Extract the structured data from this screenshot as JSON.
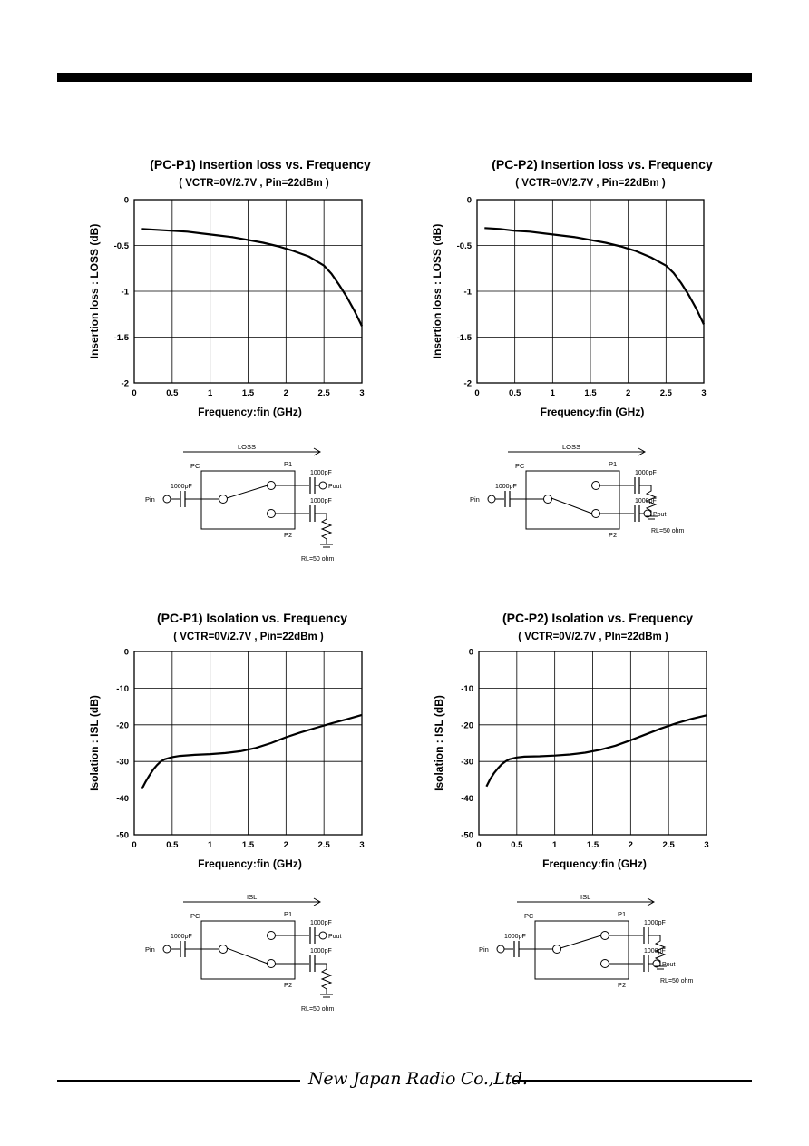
{
  "chart_data": [
    {
      "type": "line",
      "title": "(PC-P1)  Insertion loss vs. Frequency",
      "condition": "( VCTR=0V/2.7V , Pin=22dBm )",
      "xlabel": "Frequency:fin (GHz)",
      "ylabel": "Insertion loss : LOSS (dB)",
      "xlim": [
        0,
        3
      ],
      "ylim": [
        -2,
        0
      ],
      "xticks": [
        "0",
        "0.5",
        "1",
        "1.5",
        "2",
        "2.5",
        "3"
      ],
      "yticks": [
        "0",
        "-0.5",
        "-1",
        "-1.5",
        "-2"
      ],
      "grid": true,
      "series": [
        {
          "x": [
            0.1,
            0.3,
            0.5,
            0.7,
            0.9,
            1.1,
            1.3,
            1.5,
            1.7,
            1.9,
            2.1,
            2.3,
            2.5,
            2.6,
            2.7,
            2.8,
            2.9,
            3.0
          ],
          "y": [
            -0.32,
            -0.33,
            -0.34,
            -0.35,
            -0.37,
            -0.39,
            -0.41,
            -0.44,
            -0.47,
            -0.51,
            -0.56,
            -0.62,
            -0.72,
            -0.81,
            -0.93,
            -1.06,
            -1.21,
            -1.38
          ]
        }
      ]
    },
    {
      "type": "line",
      "title": "(PC-P2)  Insertion loss vs. Frequency",
      "condition": "( VCTR=0V/2.7V , Pin=22dBm )",
      "xlabel": "Frequency:fin (GHz)",
      "ylabel": "Insertion loss : LOSS (dB)",
      "xlim": [
        0,
        3
      ],
      "ylim": [
        -2,
        0
      ],
      "xticks": [
        "0",
        "0.5",
        "1",
        "1.5",
        "2",
        "2.5",
        "3"
      ],
      "yticks": [
        "0",
        "-0.5",
        "-1",
        "-1.5",
        "-2"
      ],
      "grid": true,
      "series": [
        {
          "x": [
            0.1,
            0.3,
            0.5,
            0.7,
            0.9,
            1.1,
            1.3,
            1.5,
            1.7,
            1.9,
            2.1,
            2.3,
            2.5,
            2.6,
            2.7,
            2.8,
            2.9,
            3.0
          ],
          "y": [
            -0.31,
            -0.32,
            -0.34,
            -0.35,
            -0.37,
            -0.39,
            -0.41,
            -0.44,
            -0.47,
            -0.51,
            -0.56,
            -0.63,
            -0.72,
            -0.8,
            -0.91,
            -1.04,
            -1.19,
            -1.36
          ]
        }
      ]
    },
    {
      "type": "line",
      "title": "(PC-P1)  Isolation vs. Frequency",
      "condition": "( VCTR=0V/2.7V , Pin=22dBm )",
      "xlabel": "Frequency:fin (GHz)",
      "ylabel": "Isolation : ISL (dB)",
      "xlim": [
        0,
        3
      ],
      "ylim": [
        -50,
        0
      ],
      "xticks": [
        "0",
        "0.5",
        "1",
        "1.5",
        "2",
        "2.5",
        "3"
      ],
      "yticks": [
        "0",
        "-10",
        "-20",
        "-30",
        "-40",
        "-50"
      ],
      "grid": true,
      "series": [
        {
          "x": [
            0.1,
            0.15,
            0.2,
            0.25,
            0.3,
            0.35,
            0.4,
            0.5,
            0.6,
            0.8,
            1.0,
            1.2,
            1.4,
            1.6,
            1.8,
            2.0,
            2.2,
            2.4,
            2.6,
            2.8,
            3.0
          ],
          "y": [
            -37.5,
            -35.5,
            -33.8,
            -32.2,
            -31.0,
            -30.0,
            -29.4,
            -28.8,
            -28.5,
            -28.2,
            -28.0,
            -27.7,
            -27.2,
            -26.3,
            -25.0,
            -23.4,
            -22.0,
            -20.8,
            -19.6,
            -18.5,
            -17.3
          ]
        }
      ]
    },
    {
      "type": "line",
      "title": "(PC-P2)  Isolation vs. Frequency",
      "condition": "( VCTR=0V/2.7V , PIn=22dBm )",
      "xlabel": "Frequency:fin (GHz)",
      "ylabel": "Isolation : ISL (dB)",
      "xlim": [
        0,
        3
      ],
      "ylim": [
        -50,
        0
      ],
      "xticks": [
        "0",
        "0.5",
        "1",
        "1.5",
        "2",
        "2.5",
        "3"
      ],
      "yticks": [
        "0",
        "-10",
        "-20",
        "-30",
        "-40",
        "-50"
      ],
      "grid": true,
      "series": [
        {
          "x": [
            0.1,
            0.15,
            0.2,
            0.25,
            0.3,
            0.35,
            0.4,
            0.5,
            0.6,
            0.8,
            1.0,
            1.2,
            1.4,
            1.6,
            1.8,
            2.0,
            2.2,
            2.4,
            2.6,
            2.8,
            3.0
          ],
          "y": [
            -36.8,
            -34.8,
            -33.2,
            -31.9,
            -30.8,
            -30.0,
            -29.4,
            -28.9,
            -28.7,
            -28.6,
            -28.4,
            -28.1,
            -27.6,
            -26.8,
            -25.7,
            -24.2,
            -22.6,
            -21.0,
            -19.6,
            -18.4,
            -17.4
          ]
        }
      ]
    }
  ],
  "circuits": [
    {
      "arrow_label": "LOSS",
      "pc": "PC",
      "p1": "P1",
      "p2": "P2",
      "cap": "1000pF",
      "pin": "Pin",
      "pout": "Pout",
      "rl": "RL=50 ohm"
    },
    {
      "arrow_label": "LOSS",
      "pc": "PC",
      "p1": "P1",
      "p2": "P2",
      "cap": "1000pF",
      "pin": "Pin",
      "pout": "Pout",
      "rl": "RL=50 ohm"
    },
    {
      "arrow_label": "ISL",
      "pc": "PC",
      "p1": "P1",
      "p2": "P2",
      "cap": "1000pF",
      "pin": "Pin",
      "pout": "Pout",
      "rl": "RL=50 ohm"
    },
    {
      "arrow_label": "ISL",
      "pc": "PC",
      "p1": "P1",
      "p2": "P2",
      "cap": "1000pF",
      "pin": "Pin",
      "pout": "Pout",
      "rl": "RL=50 ohm"
    }
  ],
  "footer": {
    "company": "New Japan Radio Co.,Ltd."
  }
}
